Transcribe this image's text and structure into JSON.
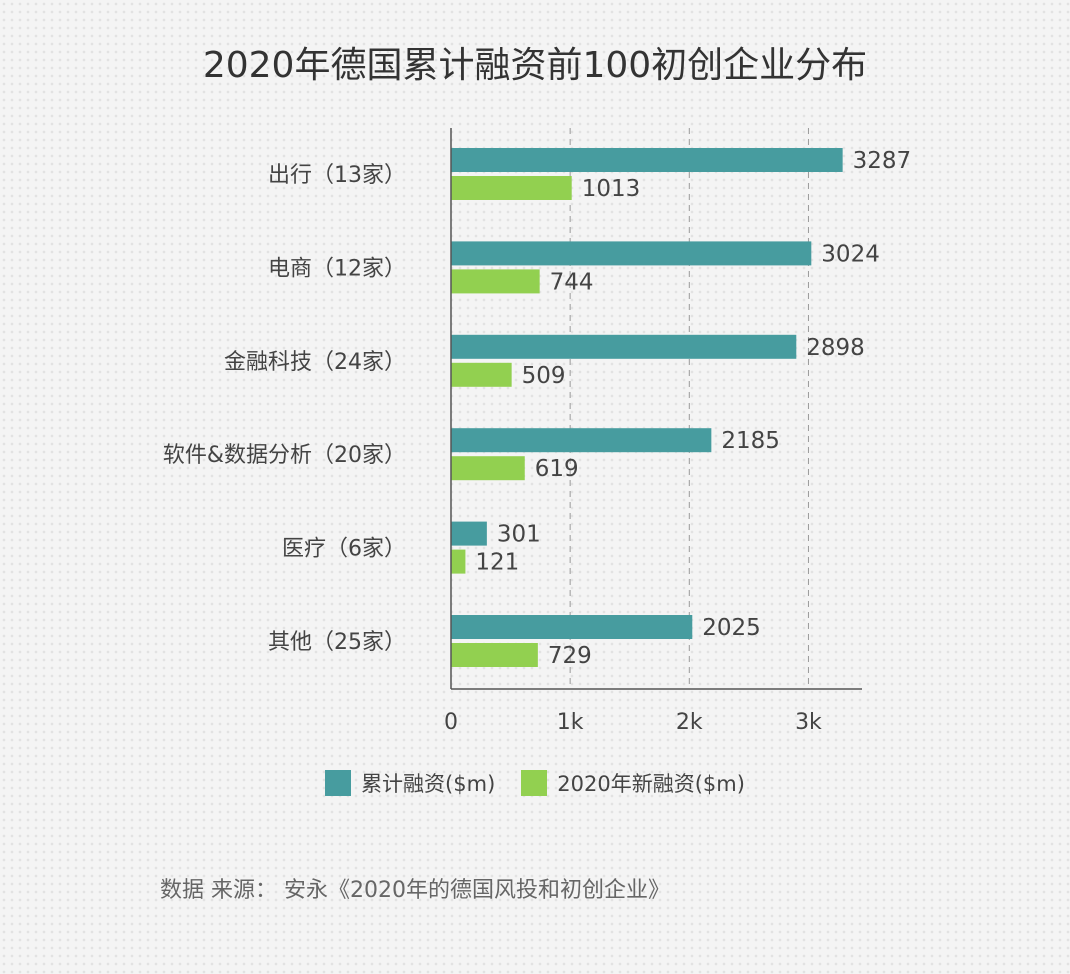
{
  "chart_data": {
    "type": "bar",
    "orientation": "horizontal",
    "title": "2020年德国累计融资前100初创企业分布",
    "categories": [
      "出行（13家）",
      "电商（12家）",
      "金融科技（24家）",
      "软件&数据分析（20家）",
      "医疗（6家）",
      "其他（25家）"
    ],
    "series": [
      {
        "name": "累计融资($m)",
        "color": "#479c9f",
        "values": [
          3287,
          3024,
          2898,
          2185,
          301,
          2025
        ]
      },
      {
        "name": "2020年新融资($m)",
        "color": "#92d050",
        "values": [
          1013,
          744,
          509,
          619,
          121,
          729
        ]
      }
    ],
    "x_ticks": [
      0,
      1000,
      2000,
      3000
    ],
    "x_tick_labels": [
      "0",
      "1k",
      "2k",
      "3k"
    ],
    "xlim": [
      0,
      3450
    ],
    "grid": "vertical dashed",
    "legend_position": "bottom"
  },
  "source_text": "数据 来源： 安永《2020年的德国风投和初创企业》"
}
